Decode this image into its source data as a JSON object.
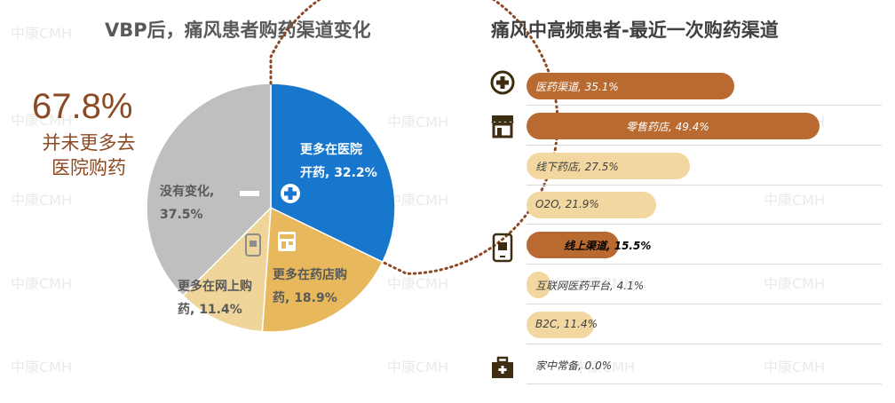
{
  "watermark": "中康CMH",
  "left_chart": {
    "title": "VBP后，痛风患者购药渠道变化",
    "highlight": {
      "percent": "67.8%",
      "line1": "并未更多去",
      "line2": "医院购药"
    },
    "labels": {
      "hospital": [
        "更多在医院",
        "开药, 32.2%"
      ],
      "no_change": [
        "没有变化,",
        "37.5%"
      ],
      "online": [
        "更多在网上购",
        "药, 11.4%"
      ],
      "store": [
        "更多在药店购",
        "药, 18.9%"
      ]
    }
  },
  "right_chart": {
    "title": "痛风中高频患者-最近一次购药渠道",
    "labels": [
      "医药渠道, 35.1%",
      "零售药店, 49.4%",
      "线下药店, 27.5%",
      "O2O, 21.9%",
      "线上渠道, 15.5%",
      "互联网医药平台, 4.1%",
      "B2C, 11.4%",
      "家中常备, 0.0%"
    ]
  },
  "chart_data": [
    {
      "type": "pie",
      "title": "VBP后，痛风患者购药渠道变化",
      "categories": [
        "更多在医院开药",
        "更多在药店购药",
        "更多在网上购药",
        "没有变化"
      ],
      "values": [
        32.2,
        18.9,
        11.4,
        37.5
      ],
      "colors": [
        "#1677cc",
        "#e8b95c",
        "#f0d59b",
        "#bfbfbf"
      ],
      "annotation": "67.8% 并未更多去医院购药"
    },
    {
      "type": "bar",
      "orientation": "horizontal",
      "title": "痛风中高频患者-最近一次购药渠道",
      "categories": [
        "医药渠道",
        "零售药店",
        "线下药店",
        "O2O",
        "线上渠道",
        "互联网医药平台",
        "B2C",
        "家中常备"
      ],
      "values": [
        35.1,
        49.4,
        27.5,
        21.9,
        15.5,
        4.1,
        11.4,
        0.0
      ],
      "levels": [
        "main",
        "main",
        "sub",
        "sub",
        "main",
        "sub",
        "sub",
        "main"
      ],
      "colors": {
        "main": "#b86a30",
        "sub": "#f2d8a0"
      },
      "icons": [
        "medical-cross-icon",
        "store-icon",
        "",
        "",
        "phone-icon",
        "",
        "",
        "first-aid-kit-icon"
      ]
    }
  ]
}
